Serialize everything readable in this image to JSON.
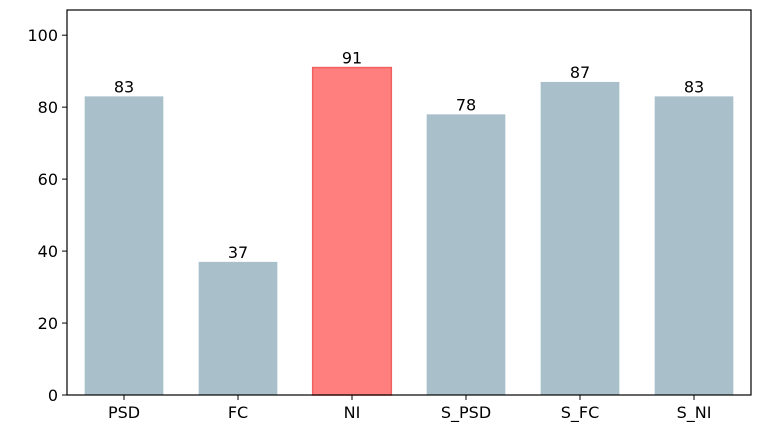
{
  "chart_data": {
    "type": "bar",
    "title": "",
    "xlabel": "",
    "ylabel": "",
    "categories": [
      "PSD",
      "FC",
      "NI",
      "S_PSD",
      "S_FC",
      "S_NI"
    ],
    "values": [
      83,
      37,
      91,
      78,
      87,
      83
    ],
    "data_labels": [
      "83",
      "37",
      "91",
      "78",
      "87",
      "83"
    ],
    "ylim": [
      0,
      107
    ],
    "yticks": [
      0,
      20,
      40,
      60,
      80,
      100
    ],
    "ytick_labels": [
      "0",
      "20",
      "40",
      "60",
      "80",
      "100"
    ],
    "grid": false,
    "colors": {
      "default_bar": "#a9bfca",
      "highlight_bar": "#ff7f7f",
      "highlight_edge": "#f06060",
      "axis": "#000000"
    },
    "highlight_index": 2
  }
}
